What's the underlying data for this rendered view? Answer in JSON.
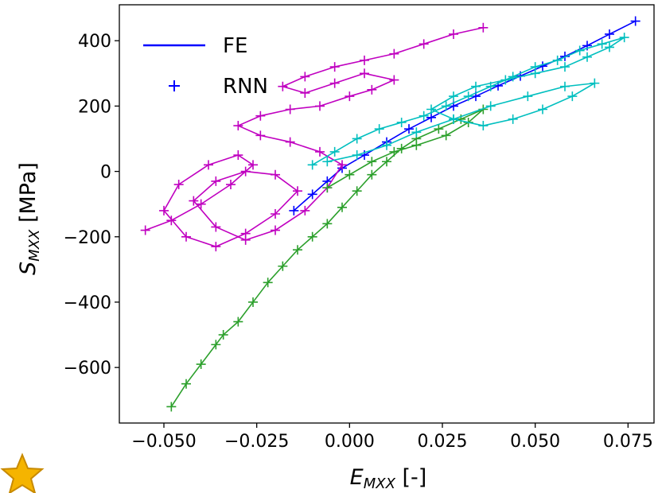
{
  "chart_data": {
    "type": "line",
    "xlabel_main": "E",
    "xlabel_sub": "MXX",
    "xlabel_unit": " [-]",
    "ylabel_main": "S",
    "ylabel_sub": "MXX",
    "ylabel_unit": " [MPa]",
    "xlim": [
      -0.062,
      0.082
    ],
    "ylim": [
      -770,
      510
    ],
    "x_ticks": [
      -0.05,
      -0.025,
      0.0,
      0.025,
      0.05,
      0.075
    ],
    "x_tick_labels": [
      "−0.050",
      "−0.025",
      "0.000",
      "0.025",
      "0.050",
      "0.075"
    ],
    "y_ticks": [
      400,
      200,
      0,
      -200,
      -400,
      -600
    ],
    "y_tick_labels": [
      "400",
      "200",
      "0",
      "−200",
      "−400",
      "−600"
    ],
    "legend": {
      "position": "top-left",
      "entries": [
        {
          "label": "FE",
          "style": "line",
          "color": "#0000ff"
        },
        {
          "label": "RNN",
          "style": "plus",
          "color": "#0000ff"
        }
      ]
    },
    "series": [
      {
        "color": "#0000ff",
        "x": [
          -0.015,
          -0.01,
          -0.006,
          -0.002,
          0.004,
          0.01,
          0.016,
          0.022,
          0.028,
          0.034,
          0.04,
          0.046,
          0.052,
          0.058,
          0.064,
          0.07,
          0.077
        ],
        "y": [
          -120,
          -70,
          -30,
          10,
          50,
          90,
          130,
          165,
          200,
          230,
          262,
          292,
          322,
          352,
          385,
          420,
          460
        ]
      },
      {
        "color": "#c000c0",
        "x": [
          -0.055,
          -0.048,
          -0.04,
          -0.032,
          -0.026,
          -0.03,
          -0.038,
          -0.046,
          -0.05,
          -0.044,
          -0.036,
          -0.028,
          -0.02,
          -0.014,
          -0.02,
          -0.028,
          -0.036,
          -0.042,
          -0.036,
          -0.028,
          -0.02,
          -0.012,
          -0.006,
          -0.002,
          -0.008,
          -0.016,
          -0.024,
          -0.03,
          -0.024,
          -0.016,
          -0.008,
          0.0,
          0.006,
          0.012,
          0.004,
          -0.004,
          -0.012,
          -0.018,
          -0.012,
          -0.004,
          0.004,
          0.012,
          0.02,
          0.028,
          0.036
        ],
        "y": [
          -180,
          -150,
          -100,
          -40,
          20,
          50,
          20,
          -40,
          -120,
          -200,
          -230,
          -190,
          -130,
          -60,
          -10,
          0,
          -30,
          -90,
          -170,
          -210,
          -180,
          -120,
          -50,
          20,
          60,
          90,
          110,
          140,
          170,
          190,
          200,
          230,
          250,
          280,
          300,
          270,
          240,
          260,
          290,
          320,
          340,
          360,
          390,
          420,
          440
        ]
      },
      {
        "color": "#2ca02c",
        "x": [
          -0.048,
          -0.044,
          -0.04,
          -0.036,
          -0.034,
          -0.03,
          -0.026,
          -0.022,
          -0.018,
          -0.014,
          -0.01,
          -0.006,
          -0.002,
          0.002,
          0.006,
          0.01,
          0.014,
          0.018,
          0.024,
          0.03,
          0.036,
          0.032,
          0.026,
          0.018,
          0.012,
          0.006,
          0.0,
          -0.006
        ],
        "y": [
          -720,
          -650,
          -590,
          -530,
          -500,
          -460,
          -400,
          -340,
          -290,
          -240,
          -200,
          -160,
          -110,
          -60,
          -10,
          30,
          70,
          100,
          130,
          160,
          190,
          150,
          110,
          80,
          60,
          30,
          -10,
          -50
        ]
      },
      {
        "color": "#00bfbf",
        "x": [
          -0.01,
          -0.004,
          0.002,
          0.008,
          0.014,
          0.02,
          0.026,
          0.032,
          0.038,
          0.044,
          0.05,
          0.056,
          0.062,
          0.068,
          0.074,
          0.07,
          0.064,
          0.058,
          0.05,
          0.042,
          0.034,
          0.028,
          0.022,
          0.028,
          0.036,
          0.044,
          0.052,
          0.06,
          0.066,
          0.058,
          0.048,
          0.038,
          0.028,
          0.018,
          0.01,
          0.002,
          -0.006
        ],
        "y": [
          20,
          60,
          100,
          130,
          150,
          170,
          200,
          230,
          260,
          290,
          320,
          340,
          370,
          390,
          410,
          380,
          350,
          320,
          300,
          280,
          260,
          230,
          190,
          160,
          140,
          160,
          190,
          230,
          270,
          260,
          230,
          200,
          160,
          120,
          80,
          50,
          30
        ]
      }
    ]
  }
}
